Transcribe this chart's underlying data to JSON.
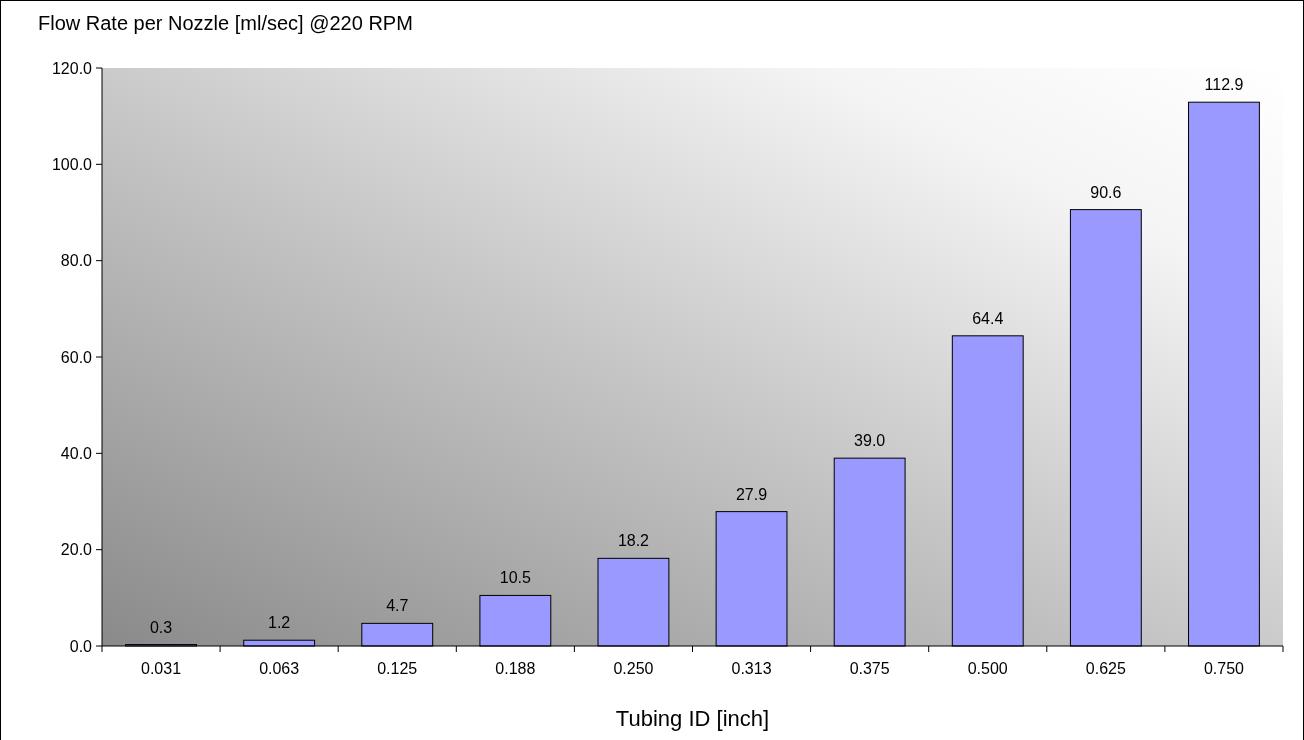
{
  "chart_data": {
    "type": "bar",
    "title": "Flow Rate per Nozzle [ml/sec] @220 RPM",
    "xlabel": "Tubing ID [inch]",
    "categories": [
      "0.031",
      "0.063",
      "0.125",
      "0.188",
      "0.250",
      "0.313",
      "0.375",
      "0.500",
      "0.625",
      "0.750"
    ],
    "values": [
      0.3,
      1.2,
      4.7,
      10.5,
      18.2,
      27.9,
      39.0,
      64.4,
      90.6,
      112.9
    ],
    "color": "#9999ff",
    "ylim": [
      0,
      120
    ],
    "yticks": [
      {
        "value": 0,
        "label": "0.0"
      },
      {
        "value": 20,
        "label": "20.0"
      },
      {
        "value": 40,
        "label": "40.0"
      },
      {
        "value": 60,
        "label": "60.0"
      },
      {
        "value": 80,
        "label": "80.0"
      },
      {
        "value": 100,
        "label": "100.0"
      },
      {
        "value": 120,
        "label": "120.0"
      }
    ],
    "value_labels": [
      "0.3",
      "1.2",
      "4.7",
      "10.5",
      "18.2",
      "27.9",
      "39.0",
      "64.4",
      "90.6",
      "112.9"
    ],
    "grid": false
  }
}
